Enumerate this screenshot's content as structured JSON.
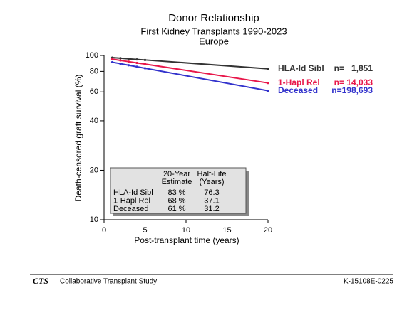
{
  "chart_data": {
    "type": "line",
    "title": "Donor Relationship",
    "subtitle": [
      "First Kidney Transplants 1990-2023",
      "Europe"
    ],
    "x_label": "Post-transplant time (years)",
    "y_label": "Death-censored graft survival (%)",
    "x": [
      1,
      2,
      3,
      4,
      5,
      20
    ],
    "series": [
      {
        "name": "HLA-Id Sibl",
        "n_label": "n=   1,851",
        "color": "#333333",
        "values": [
          97,
          96.2,
          95.4,
          94.6,
          93.9,
          83
        ]
      },
      {
        "name": "1-Hapl Rel",
        "n_label": "n= 14,033",
        "color": "#e8174a",
        "values": [
          95,
          93.3,
          91.7,
          90.1,
          88.6,
          68
        ]
      },
      {
        "name": "Deceased",
        "n_label": "n=198,693",
        "color": "#3333cc",
        "values": [
          91,
          89.1,
          87.2,
          85.4,
          83.6,
          61
        ]
      }
    ],
    "xlim": [
      0,
      20
    ],
    "xticks": [
      0,
      5,
      10,
      15,
      20
    ],
    "ylim": [
      10,
      100
    ],
    "yticks": [
      10,
      20,
      40,
      60,
      80,
      100
    ],
    "log_y": true,
    "table": {
      "columns": [
        [
          "20-Year",
          "Estimate"
        ],
        [
          "Half-Life",
          "(Years)"
        ]
      ],
      "rows": [
        [
          "HLA-Id Sibl",
          "83 %",
          "76.3"
        ],
        [
          "1-Hapl Rel",
          "68 %",
          "37.1"
        ],
        [
          "Deceased",
          "61 %",
          "31.2"
        ]
      ]
    }
  },
  "footer": {
    "logo": "CTS",
    "name": "Collaborative Transplant Study",
    "code": "K-15108E-0225"
  }
}
